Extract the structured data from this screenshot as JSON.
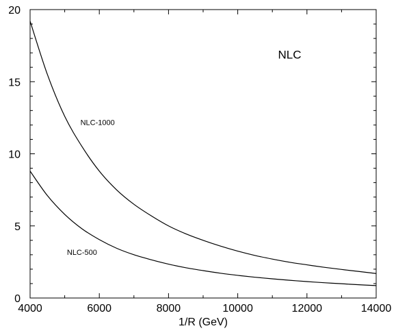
{
  "chart_data": {
    "type": "line",
    "title": "",
    "xlabel": "1/R (GeV)",
    "ylabel": "",
    "xlim": [
      4000,
      14000
    ],
    "ylim": [
      0,
      20
    ],
    "xticks": [
      4000,
      6000,
      8000,
      10000,
      12000,
      14000
    ],
    "yticks": [
      0,
      5,
      10,
      15,
      20
    ],
    "grid": false,
    "legend": "none",
    "annotations": [
      {
        "text": "NLC"
      },
      {
        "text": "NLC-1000"
      },
      {
        "text": "NLC-500"
      }
    ],
    "series": [
      {
        "label": "NLC-1000",
        "color": "#000000",
        "x": [
          4000,
          4500,
          5000,
          5500,
          6000,
          6500,
          7000,
          7500,
          8000,
          8500,
          9000,
          9500,
          10000,
          10500,
          11000,
          11500,
          12000,
          12500,
          13000,
          13500,
          14000
        ],
        "y": [
          19.2,
          15.5,
          12.6,
          10.5,
          8.8,
          7.5,
          6.5,
          5.7,
          5.0,
          4.45,
          4.0,
          3.6,
          3.25,
          2.95,
          2.7,
          2.48,
          2.3,
          2.13,
          1.98,
          1.84,
          1.7
        ]
      },
      {
        "label": "NLC-500",
        "color": "#000000",
        "x": [
          4000,
          4500,
          5000,
          5500,
          6000,
          6500,
          7000,
          7500,
          8000,
          8500,
          9000,
          9500,
          10000,
          10500,
          11000,
          11500,
          12000,
          12500,
          13000,
          13500,
          14000
        ],
        "y": [
          8.8,
          7.1,
          5.8,
          4.8,
          4.05,
          3.45,
          3.0,
          2.65,
          2.35,
          2.1,
          1.9,
          1.72,
          1.57,
          1.44,
          1.33,
          1.23,
          1.14,
          1.06,
          0.99,
          0.92,
          0.86
        ]
      }
    ]
  }
}
